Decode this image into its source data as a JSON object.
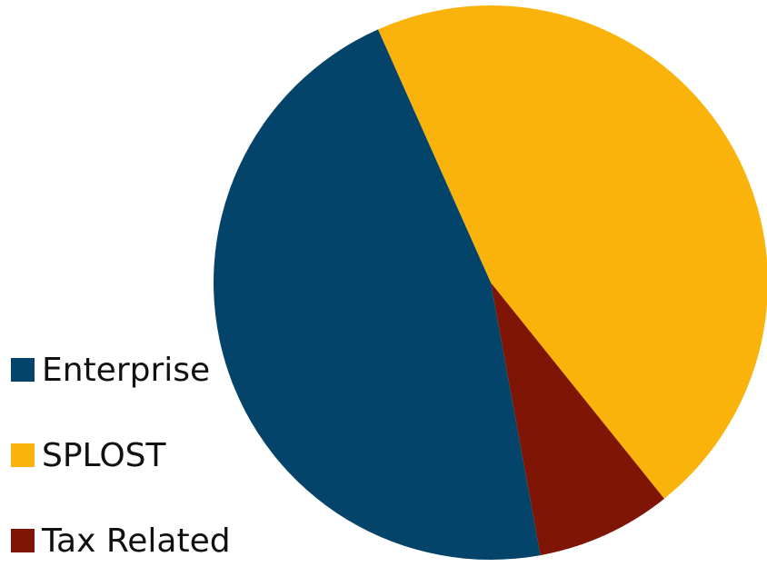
{
  "chart_data": {
    "type": "pie",
    "title": "",
    "slices": [
      {
        "label": "Enterprise",
        "value": 46.2,
        "color": "#05446A"
      },
      {
        "label": "SPLOST",
        "value": 45.9,
        "color": "#FAB30A"
      },
      {
        "label": "Tax Related",
        "value": 7.9,
        "color": "#7E1505"
      }
    ],
    "legend": {
      "position": "left",
      "items": [
        {
          "label": "Enterprise",
          "color": "#05446A"
        },
        {
          "label": "SPLOST",
          "color": "#FAB30A"
        },
        {
          "label": "Tax Related",
          "color": "#7E1505"
        }
      ]
    }
  }
}
